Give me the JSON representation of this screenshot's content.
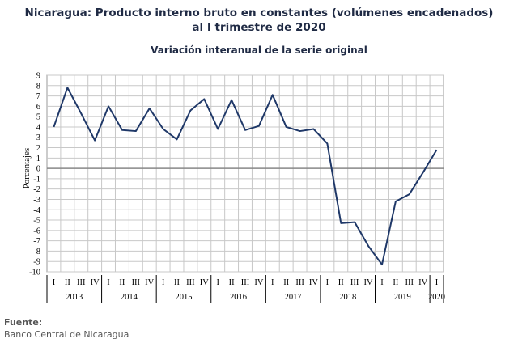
{
  "title_line1": "Nicaragua: Producto interno bruto en constantes (volúmenes encadenados)",
  "title_line2": "al I trimestre de 2020",
  "subtitle": "Variación interanual de la serie original",
  "source_label": "Fuente:",
  "source_text": "Banco Central de Nicaragua",
  "colors": {
    "line": "#1f3868",
    "grid": "#c8c8c8",
    "zero": "#888888"
  },
  "chart_data": {
    "type": "line",
    "ylabel": "Porcentajes",
    "ylim": [
      -10,
      9
    ],
    "yticks": [
      9,
      8,
      7,
      6,
      5,
      4,
      3,
      2,
      1,
      0,
      -1,
      -2,
      -3,
      -4,
      -5,
      -6,
      -7,
      -8,
      -9,
      -10
    ],
    "grid": true,
    "quarters": [
      "I",
      "II",
      "III",
      "IV",
      "I",
      "II",
      "III",
      "IV",
      "I",
      "II",
      "III",
      "IV",
      "I",
      "II",
      "III",
      "IV",
      "I",
      "II",
      "III",
      "IV",
      "I",
      "II",
      "III",
      "IV",
      "I",
      "II",
      "III",
      "IV",
      "I"
    ],
    "years": [
      "2013",
      "2014",
      "2015",
      "2016",
      "2017",
      "2018",
      "2019",
      "2020"
    ],
    "values": [
      4.0,
      7.8,
      5.3,
      2.7,
      6.0,
      3.7,
      3.6,
      5.8,
      3.8,
      2.8,
      5.6,
      6.7,
      3.8,
      6.6,
      3.7,
      4.1,
      7.1,
      4.0,
      3.6,
      3.8,
      2.4,
      -5.3,
      -5.2,
      -7.5,
      -9.3,
      -3.2,
      -2.5,
      -0.4,
      1.8
    ]
  }
}
